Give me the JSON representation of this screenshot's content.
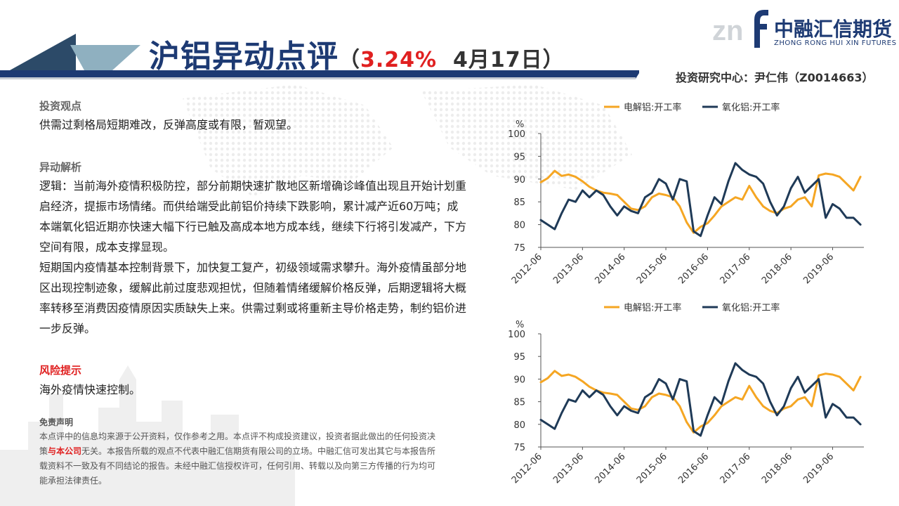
{
  "header": {
    "title_main": "沪铝异动点评",
    "paren_open": "（",
    "change_pct": "3.24%",
    "date": "4月17日",
    "paren_close": "）",
    "analyst": "投资研究中心：尹仁伟（Z0014663）"
  },
  "logo": {
    "mark": "zn",
    "name_cn": "中融汇信期货",
    "name_en": "ZHONG RONG HUI XIN FUTURES"
  },
  "content": {
    "view_heading": "投资观点",
    "view_text": "供需过剩格局短期难改，反弹高度或有限，暂观望。",
    "analysis_heading": "异动解析",
    "analysis_p1": "逻辑：当前海外疫情积极防控，部分前期快速扩散地区新增确诊峰值出现且开始计划重启经济，提振市场情绪。而供给端受此前铝价持续下跌影响，累计减产近60万吨；成本端氧化铝近期亦快速大幅下行已触及高成本地方成本线，继续下行将引发减产，下方空间有限，成本支撑显现。",
    "analysis_p2": "短期国内疫情基本控制背景下，加快复工复产，初级领域需求攀升。海外疫情虽部分地区出现控制迹象，缓解此前过度悲观担忧，但随着情绪缓解价格反弹，后期逻辑将大概率转移至消费因疫情原因实质缺失上来。供需过剩或将重新主导价格走势，制约铝价进一步反弹。",
    "risk_heading": "风险提示",
    "risk_text": "海外疫情快速控制。"
  },
  "disclaimer": {
    "heading": "免责声明",
    "text_before": "本点评中的信息均来源于公开资料，仅作参考之用。本点评不构成投资建议，投资者据此做出的任何投资决策",
    "text_red": "与本公司",
    "text_after": "无关。本报告所载的观点不代表中融汇信期货有限公司的立场。中融汇信可发出其它与本报告所载资料不一致及有不同结论的报告。未经中融汇信授权许可，任何引用、转载以及向第三方传播的行为均可能承担法律责任。"
  },
  "colors": {
    "title_navy": "#1d3a73",
    "accent_red": "#e02020",
    "series_electrolytic": "#f5a623",
    "series_alumina": "#1f3a57"
  },
  "chart_data": [
    {
      "type": "line",
      "ylabel": "%",
      "ylim": [
        75,
        100
      ],
      "yticks": [
        75,
        80,
        85,
        90,
        95,
        100
      ],
      "xlim": [
        "2012-06",
        "2020-03"
      ],
      "xticks": [
        "2012-06",
        "2013-06",
        "2014-06",
        "2015-06",
        "2016-06",
        "2017-06",
        "2018-06",
        "2019-06"
      ],
      "grid": false,
      "legend": "top",
      "series": [
        {
          "name": "电解铝:开工率",
          "color": "#f5a623",
          "x": [
            "2012-06",
            "2012-08",
            "2012-10",
            "2012-12",
            "2013-02",
            "2013-04",
            "2013-06",
            "2013-08",
            "2013-10",
            "2013-12",
            "2014-02",
            "2014-04",
            "2014-06",
            "2014-08",
            "2014-10",
            "2014-12",
            "2015-02",
            "2015-04",
            "2015-06",
            "2015-08",
            "2015-10",
            "2015-12",
            "2016-02",
            "2016-04",
            "2016-06",
            "2016-08",
            "2016-10",
            "2016-12",
            "2017-02",
            "2017-04",
            "2017-06",
            "2017-08",
            "2017-10",
            "2017-12",
            "2018-02",
            "2018-04",
            "2018-06",
            "2018-08",
            "2018-10",
            "2018-12",
            "2019-02",
            "2019-04",
            "2019-06",
            "2019-08",
            "2019-10",
            "2019-12",
            "2020-02"
          ],
          "values": [
            89.3,
            90.2,
            91.8,
            90.7,
            91.0,
            90.5,
            89.5,
            88.3,
            87.5,
            87.0,
            86.8,
            86.5,
            85.0,
            83.5,
            83.2,
            84.0,
            86.0,
            86.8,
            86.5,
            86.0,
            84.0,
            80.5,
            78.2,
            79.5,
            80.3,
            82.0,
            84.0,
            85.0,
            86.0,
            85.5,
            88.5,
            86.0,
            84.0,
            83.0,
            82.5,
            83.5,
            84.0,
            85.5,
            86.0,
            84.0,
            90.8,
            91.2,
            91.0,
            90.5,
            89.0,
            87.5,
            90.5
          ]
        },
        {
          "name": "氧化铝:开工率",
          "color": "#1f3a57",
          "x": [
            "2012-06",
            "2012-08",
            "2012-10",
            "2012-12",
            "2013-02",
            "2013-04",
            "2013-06",
            "2013-08",
            "2013-10",
            "2013-12",
            "2014-02",
            "2014-04",
            "2014-06",
            "2014-08",
            "2014-10",
            "2014-12",
            "2015-02",
            "2015-04",
            "2015-06",
            "2015-08",
            "2015-10",
            "2015-12",
            "2016-02",
            "2016-04",
            "2016-06",
            "2016-08",
            "2016-10",
            "2016-12",
            "2017-02",
            "2017-04",
            "2017-06",
            "2017-08",
            "2017-10",
            "2017-12",
            "2018-02",
            "2018-04",
            "2018-06",
            "2018-08",
            "2018-10",
            "2018-12",
            "2019-02",
            "2019-04",
            "2019-06",
            "2019-08",
            "2019-10",
            "2019-12",
            "2020-02"
          ],
          "values": [
            81.0,
            80.0,
            79.0,
            82.5,
            85.5,
            85.0,
            87.5,
            86.0,
            87.5,
            86.5,
            84.0,
            82.0,
            84.0,
            83.0,
            82.5,
            86.0,
            87.0,
            90.0,
            89.0,
            85.5,
            90.0,
            89.5,
            78.5,
            77.5,
            82.0,
            86.0,
            84.5,
            89.5,
            93.5,
            92.0,
            91.0,
            90.5,
            89.0,
            85.0,
            82.0,
            84.0,
            88.0,
            90.5,
            87.0,
            88.5,
            90.0,
            81.5,
            84.5,
            83.5,
            81.5,
            81.5,
            80.0
          ]
        }
      ]
    },
    {
      "type": "line",
      "ylabel": "%",
      "ylim": [
        75,
        100
      ],
      "yticks": [
        75,
        80,
        85,
        90,
        95,
        100
      ],
      "xlim": [
        "2012-06",
        "2020-03"
      ],
      "xticks": [
        "2012-06",
        "2013-06",
        "2014-06",
        "2015-06",
        "2016-06",
        "2017-06",
        "2018-06",
        "2019-06"
      ],
      "grid": false,
      "legend": "top",
      "series": [
        {
          "name": "电解铝:开工率",
          "color": "#f5a623",
          "x": [
            "2012-06",
            "2012-08",
            "2012-10",
            "2012-12",
            "2013-02",
            "2013-04",
            "2013-06",
            "2013-08",
            "2013-10",
            "2013-12",
            "2014-02",
            "2014-04",
            "2014-06",
            "2014-08",
            "2014-10",
            "2014-12",
            "2015-02",
            "2015-04",
            "2015-06",
            "2015-08",
            "2015-10",
            "2015-12",
            "2016-02",
            "2016-04",
            "2016-06",
            "2016-08",
            "2016-10",
            "2016-12",
            "2017-02",
            "2017-04",
            "2017-06",
            "2017-08",
            "2017-10",
            "2017-12",
            "2018-02",
            "2018-04",
            "2018-06",
            "2018-08",
            "2018-10",
            "2018-12",
            "2019-02",
            "2019-04",
            "2019-06",
            "2019-08",
            "2019-10",
            "2019-12",
            "2020-02"
          ],
          "values": [
            89.3,
            90.2,
            91.8,
            90.7,
            91.0,
            90.5,
            89.5,
            88.3,
            87.5,
            87.0,
            86.8,
            86.5,
            85.0,
            83.5,
            83.2,
            84.0,
            86.0,
            86.8,
            86.5,
            86.0,
            84.0,
            80.5,
            78.2,
            79.5,
            80.3,
            82.0,
            84.0,
            85.0,
            86.0,
            85.5,
            88.5,
            86.0,
            84.0,
            83.0,
            82.5,
            83.5,
            84.0,
            85.5,
            86.0,
            84.0,
            90.8,
            91.2,
            91.0,
            90.5,
            89.0,
            87.5,
            90.5
          ]
        },
        {
          "name": "氧化铝:开工率",
          "color": "#1f3a57",
          "x": [
            "2012-06",
            "2012-08",
            "2012-10",
            "2012-12",
            "2013-02",
            "2013-04",
            "2013-06",
            "2013-08",
            "2013-10",
            "2013-12",
            "2014-02",
            "2014-04",
            "2014-06",
            "2014-08",
            "2014-10",
            "2014-12",
            "2015-02",
            "2015-04",
            "2015-06",
            "2015-08",
            "2015-10",
            "2015-12",
            "2016-02",
            "2016-04",
            "2016-06",
            "2016-08",
            "2016-10",
            "2016-12",
            "2017-02",
            "2017-04",
            "2017-06",
            "2017-08",
            "2017-10",
            "2017-12",
            "2018-02",
            "2018-04",
            "2018-06",
            "2018-08",
            "2018-10",
            "2018-12",
            "2019-02",
            "2019-04",
            "2019-06",
            "2019-08",
            "2019-10",
            "2019-12",
            "2020-02"
          ],
          "values": [
            81.0,
            80.0,
            79.0,
            82.5,
            85.5,
            85.0,
            87.5,
            86.0,
            87.5,
            86.5,
            84.0,
            82.0,
            84.0,
            83.0,
            82.5,
            86.0,
            87.0,
            90.0,
            89.0,
            85.5,
            90.0,
            89.5,
            78.5,
            77.5,
            82.0,
            86.0,
            84.5,
            89.5,
            93.5,
            92.0,
            91.0,
            90.5,
            89.0,
            85.0,
            82.0,
            84.0,
            88.0,
            90.5,
            87.0,
            88.5,
            90.0,
            81.5,
            84.5,
            83.5,
            81.5,
            81.5,
            80.0
          ]
        }
      ]
    }
  ]
}
